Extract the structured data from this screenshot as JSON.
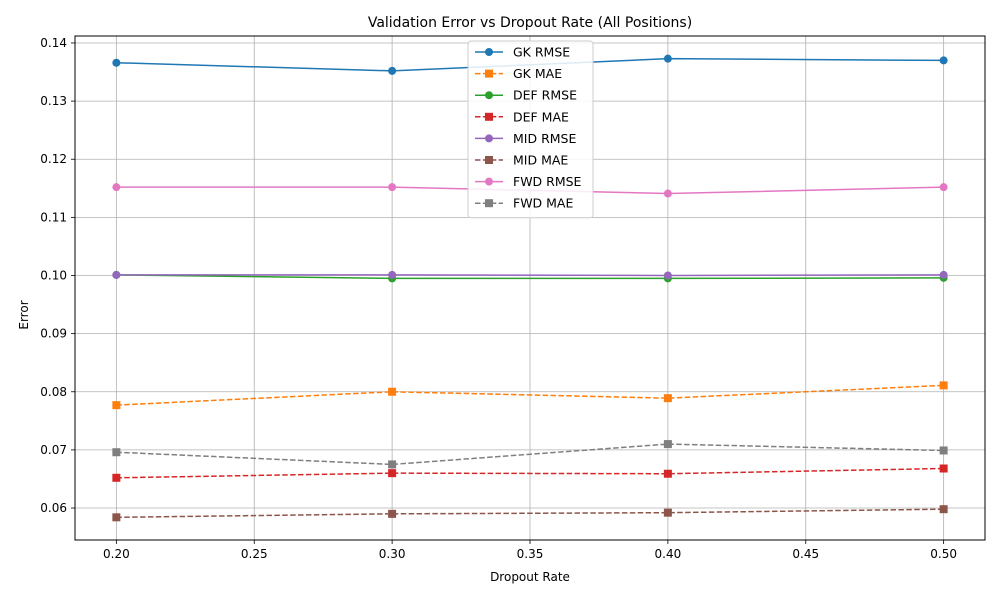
{
  "chart_data": {
    "type": "line",
    "title": "Validation Error vs Dropout Rate (All Positions)",
    "xlabel": "Dropout Rate",
    "ylabel": "Error",
    "x": [
      0.2,
      0.3,
      0.4,
      0.5
    ],
    "xlim": [
      0.185,
      0.515
    ],
    "ylim": [
      0.0545,
      0.1412
    ],
    "xticks": [
      0.2,
      0.25,
      0.3,
      0.35,
      0.4,
      0.45,
      0.5
    ],
    "xtick_labels": [
      "0.20",
      "0.25",
      "0.30",
      "0.35",
      "0.40",
      "0.45",
      "0.50"
    ],
    "yticks": [
      0.06,
      0.07,
      0.08,
      0.09,
      0.1,
      0.11,
      0.12,
      0.13,
      0.14
    ],
    "ytick_labels": [
      "0.06",
      "0.07",
      "0.08",
      "0.09",
      "0.10",
      "0.11",
      "0.12",
      "0.13",
      "0.14"
    ],
    "grid": true,
    "legend_position": "upper-center",
    "series": [
      {
        "name": "GK RMSE",
        "values": [
          0.1366,
          0.1352,
          0.1373,
          0.137
        ],
        "color": "#1f77b4",
        "dash": "solid",
        "marker": "circle"
      },
      {
        "name": "GK MAE",
        "values": [
          0.0777,
          0.08,
          0.0789,
          0.0811
        ],
        "color": "#ff7f0e",
        "dash": "dashed",
        "marker": "square"
      },
      {
        "name": "DEF RMSE",
        "values": [
          0.1001,
          0.0995,
          0.0995,
          0.0996
        ],
        "color": "#2ca02c",
        "dash": "solid",
        "marker": "circle"
      },
      {
        "name": "DEF MAE",
        "values": [
          0.0652,
          0.066,
          0.0659,
          0.0668
        ],
        "color": "#d62728",
        "dash": "dashed",
        "marker": "square"
      },
      {
        "name": "MID RMSE",
        "values": [
          0.1001,
          0.1001,
          0.1,
          0.1001
        ],
        "color": "#9467bd",
        "dash": "solid",
        "marker": "circle"
      },
      {
        "name": "MID MAE",
        "values": [
          0.0584,
          0.059,
          0.0592,
          0.0598
        ],
        "color": "#8c564b",
        "dash": "dashed",
        "marker": "square"
      },
      {
        "name": "FWD RMSE",
        "values": [
          0.1152,
          0.1152,
          0.1141,
          0.1152
        ],
        "color": "#e377c2",
        "dash": "solid",
        "marker": "circle"
      },
      {
        "name": "FWD MAE",
        "values": [
          0.0696,
          0.0675,
          0.071,
          0.0699
        ],
        "color": "#7f7f7f",
        "dash": "dashed",
        "marker": "square"
      }
    ]
  }
}
